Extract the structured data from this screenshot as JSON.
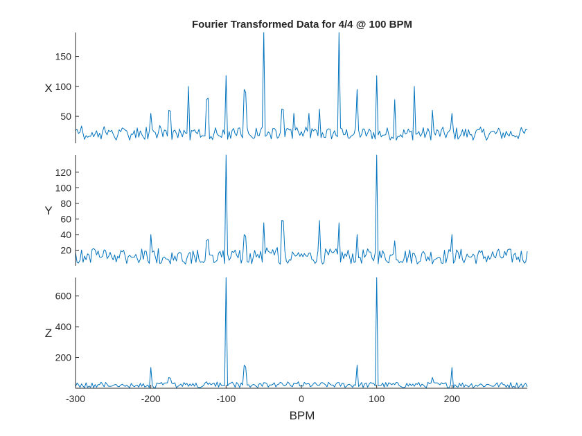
{
  "chart_data": {
    "type": "line",
    "title": "Fourier Transformed Data for 4/4 @ 100 BPM",
    "xlabel": "BPM",
    "xlim": [
      -300,
      300
    ],
    "xticks": [
      -300,
      -200,
      -100,
      0,
      100,
      200
    ],
    "color": "#0072BD",
    "grid": false,
    "subplots": [
      {
        "ylabel": "X",
        "ylim": [
          5,
          190
        ],
        "yticks": [
          50,
          100,
          150
        ],
        "peaks": [
          {
            "x": -200,
            "y": 55
          },
          {
            "x": -175,
            "y": 60
          },
          {
            "x": -150,
            "y": 100
          },
          {
            "x": -125,
            "y": 78
          },
          {
            "x": -100,
            "y": 118
          },
          {
            "x": -75,
            "y": 95
          },
          {
            "x": -50,
            "y": 190
          },
          {
            "x": -25,
            "y": 62
          },
          {
            "x": -10,
            "y": 55
          },
          {
            "x": 10,
            "y": 55
          },
          {
            "x": 25,
            "y": 62
          },
          {
            "x": 50,
            "y": 190
          },
          {
            "x": 75,
            "y": 95
          },
          {
            "x": 100,
            "y": 118
          },
          {
            "x": 125,
            "y": 78
          },
          {
            "x": 150,
            "y": 100
          },
          {
            "x": 175,
            "y": 60
          },
          {
            "x": 200,
            "y": 55
          }
        ],
        "baseline": [
          10,
          32
        ]
      },
      {
        "ylabel": "Y",
        "ylim": [
          0,
          142
        ],
        "yticks": [
          20,
          40,
          60,
          80,
          100,
          120
        ],
        "peaks": [
          {
            "x": -200,
            "y": 40
          },
          {
            "x": -125,
            "y": 32
          },
          {
            "x": -100,
            "y": 142
          },
          {
            "x": -75,
            "y": 40
          },
          {
            "x": -50,
            "y": 55
          },
          {
            "x": -25,
            "y": 58
          },
          {
            "x": 25,
            "y": 58
          },
          {
            "x": 50,
            "y": 55
          },
          {
            "x": 75,
            "y": 40
          },
          {
            "x": 100,
            "y": 142
          },
          {
            "x": 125,
            "y": 32
          },
          {
            "x": 200,
            "y": 40
          }
        ],
        "baseline": [
          2,
          22
        ]
      },
      {
        "ylabel": "Z",
        "ylim": [
          0,
          720
        ],
        "yticks": [
          200,
          400,
          600
        ],
        "peaks": [
          {
            "x": -200,
            "y": 135
          },
          {
            "x": -175,
            "y": 70
          },
          {
            "x": -100,
            "y": 720
          },
          {
            "x": -75,
            "y": 150
          },
          {
            "x": 75,
            "y": 150
          },
          {
            "x": 100,
            "y": 720
          },
          {
            "x": 175,
            "y": 70
          },
          {
            "x": 200,
            "y": 135
          }
        ],
        "baseline": [
          3,
          40
        ]
      }
    ]
  }
}
